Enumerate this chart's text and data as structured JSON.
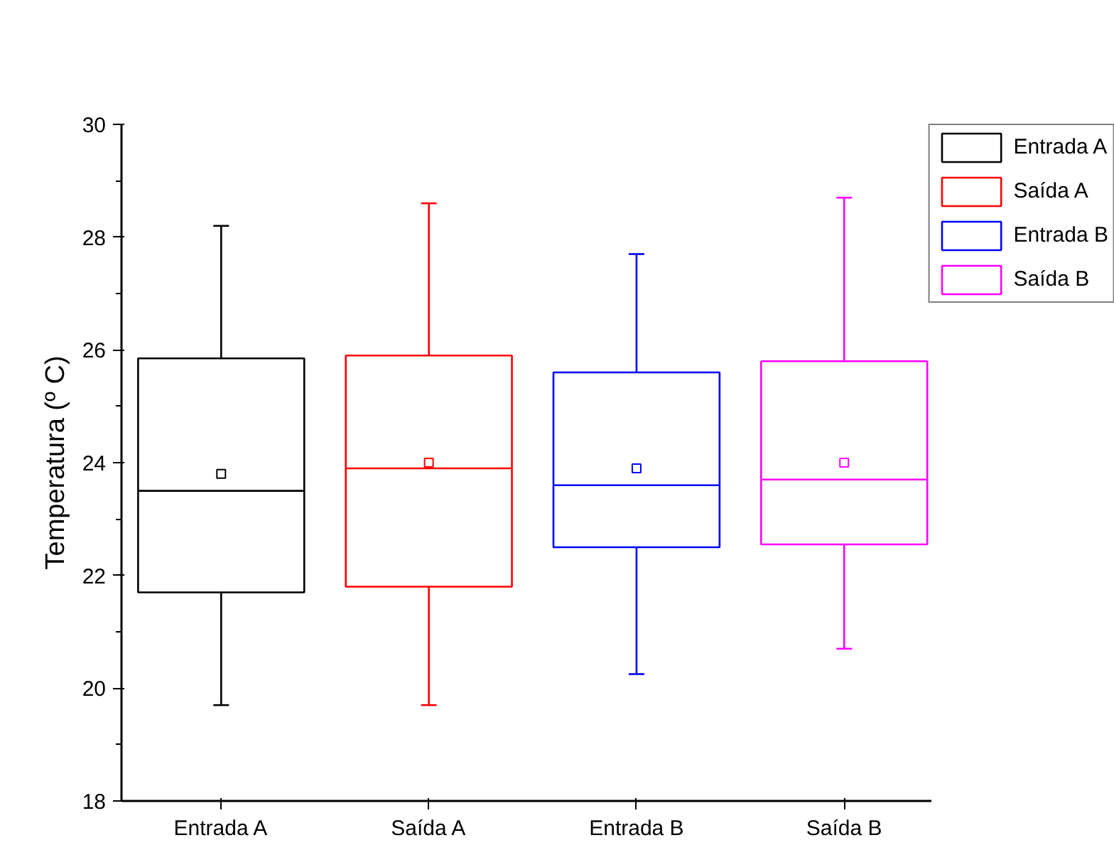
{
  "chart_data": {
    "type": "box",
    "ylabel": "Temperatura (º C)",
    "categories": [
      "Entrada A",
      "Saída A",
      "Entrada B",
      "Saída B"
    ],
    "series": [
      {
        "name": "Entrada A",
        "color": "#000000",
        "x": [
          "Entrada A"
        ],
        "boxes": [
          {
            "low": 19.7,
            "q1": 21.7,
            "median": 23.5,
            "q3": 25.85,
            "high": 28.2,
            "mean": 23.8
          }
        ]
      },
      {
        "name": "Saída A",
        "color": "#ff0000",
        "x": [
          "Saída A"
        ],
        "boxes": [
          {
            "low": 19.7,
            "q1": 21.8,
            "median": 23.9,
            "q3": 25.9,
            "high": 28.6,
            "mean": 24.0
          }
        ]
      },
      {
        "name": "Entrada B",
        "color": "#0000ff",
        "x": [
          "Entrada B"
        ],
        "boxes": [
          {
            "low": 20.25,
            "q1": 22.5,
            "median": 23.6,
            "q3": 25.6,
            "high": 27.7,
            "mean": 23.9
          }
        ]
      },
      {
        "name": "Saída B",
        "color": "#ff00ff",
        "x": [
          "Saída B"
        ],
        "boxes": [
          {
            "low": 20.7,
            "q1": 22.55,
            "median": 23.7,
            "q3": 25.8,
            "high": 28.7,
            "mean": 24.0
          }
        ]
      }
    ],
    "ylim": [
      18,
      30
    ],
    "yticks": [
      18,
      20,
      22,
      24,
      26,
      28,
      30
    ],
    "legend": "top right",
    "grid": false
  }
}
